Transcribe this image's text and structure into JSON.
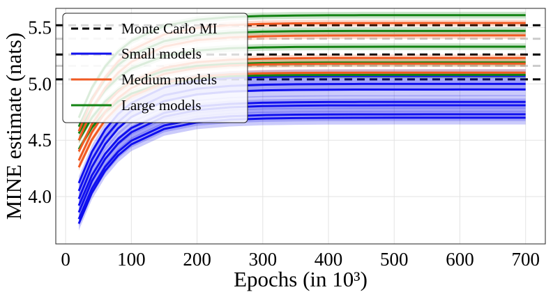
{
  "chart_data": {
    "type": "line",
    "xlabel": "Epochs (in 10³)",
    "ylabel": "MINE estimate (nats)",
    "xlim": [
      -15,
      730
    ],
    "ylim": [
      3.58,
      5.67
    ],
    "xticks": [
      0,
      100,
      200,
      300,
      400,
      500,
      600,
      700
    ],
    "yticks": [
      4.0,
      4.5,
      5.0,
      5.5
    ],
    "ytick_labels": [
      "4.0",
      "4.5",
      "5.0",
      "5.5"
    ],
    "grid": true,
    "legend_position": "top-left",
    "legend": [
      {
        "label": "Monte Carlo MI",
        "style": "dashed",
        "color": "#000000"
      },
      {
        "label": "Small models",
        "style": "solid",
        "color": "#1010ee"
      },
      {
        "label": "Medium models",
        "style": "solid",
        "color": "#f05a22"
      },
      {
        "label": "Large models",
        "style": "solid",
        "color": "#138313"
      }
    ],
    "x": [
      20,
      40,
      60,
      80,
      100,
      150,
      200,
      250,
      300,
      350,
      400,
      450,
      500,
      550,
      600,
      650,
      700
    ],
    "reference_lines": [
      {
        "name": "Monte Carlo MI",
        "value": 5.52,
        "color": "#000000"
      },
      {
        "name": "Monte Carlo MI",
        "value": 5.4,
        "color": "#cccccc"
      },
      {
        "name": "Monte Carlo MI",
        "value": 5.26,
        "color": "#000000"
      },
      {
        "name": "Monte Carlo MI",
        "value": 5.16,
        "color": "#cccccc"
      },
      {
        "name": "Monte Carlo MI",
        "value": 5.04,
        "color": "#000000"
      }
    ],
    "series": [
      {
        "name": "Small models",
        "color": "#1010ee",
        "final": 4.7,
        "start": 3.76,
        "band": 0.06
      },
      {
        "name": "Small models",
        "color": "#1010ee",
        "final": 4.73,
        "start": 3.8,
        "band": 0.06
      },
      {
        "name": "Small models",
        "color": "#1010ee",
        "final": 4.81,
        "start": 3.86,
        "band": 0.06
      },
      {
        "name": "Small models",
        "color": "#1010ee",
        "final": 4.84,
        "start": 3.92,
        "band": 0.06
      },
      {
        "name": "Small models",
        "color": "#1010ee",
        "final": 4.95,
        "start": 3.98,
        "band": 0.06
      },
      {
        "name": "Small models",
        "color": "#1010ee",
        "final": 5.0,
        "start": 4.05,
        "band": 0.06
      },
      {
        "name": "Small models",
        "color": "#1010ee",
        "final": 5.07,
        "start": 4.12,
        "band": 0.06
      },
      {
        "name": "Medium models",
        "color": "#f05a22",
        "final": 5.1,
        "start": 4.26,
        "band": 0.03
      },
      {
        "name": "Medium models",
        "color": "#f05a22",
        "final": 5.18,
        "start": 4.32,
        "band": 0.03
      },
      {
        "name": "Medium models",
        "color": "#f05a22",
        "final": 5.23,
        "start": 4.4,
        "band": 0.03
      },
      {
        "name": "Medium models",
        "color": "#f05a22",
        "final": 5.43,
        "start": 4.5,
        "band": 0.03
      },
      {
        "name": "Medium models",
        "color": "#f05a22",
        "final": 5.54,
        "start": 4.58,
        "band": 0.03
      },
      {
        "name": "Large models",
        "color": "#138313",
        "final": 5.08,
        "start": 4.42,
        "band": 0.03
      },
      {
        "name": "Large models",
        "color": "#138313",
        "final": 5.19,
        "start": 4.5,
        "band": 0.03
      },
      {
        "name": "Large models",
        "color": "#138313",
        "final": 5.33,
        "start": 4.56,
        "band": 0.03
      },
      {
        "name": "Large models",
        "color": "#138313",
        "final": 5.47,
        "start": 4.62,
        "band": 0.03
      },
      {
        "name": "Large models",
        "color": "#138313",
        "final": 5.61,
        "start": 4.7,
        "band": 0.03
      }
    ]
  }
}
